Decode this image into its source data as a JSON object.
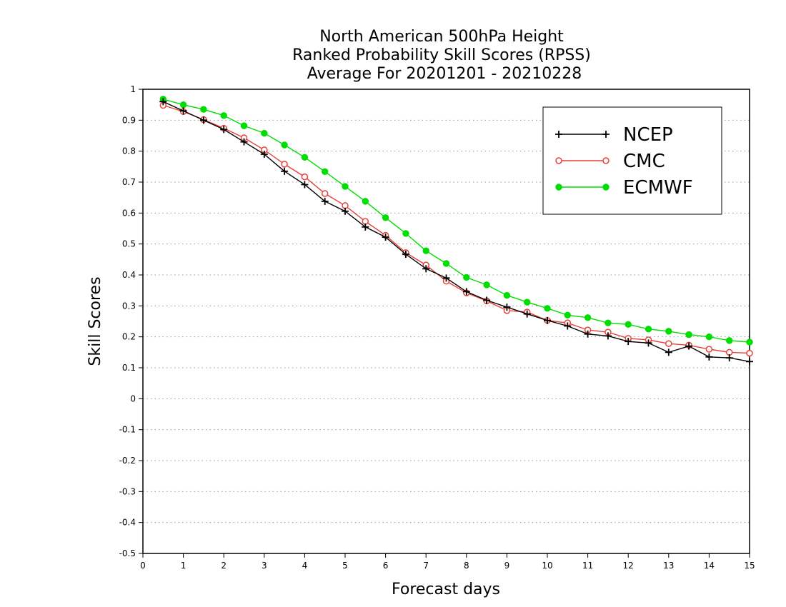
{
  "chart_data": {
    "type": "line",
    "title_lines": [
      "North American 500hPa Height",
      "Ranked Probability Skill Scores (RPSS)",
      "Average For 20201201 - 20210228"
    ],
    "xlabel": "Forecast days",
    "ylabel": "Skill Scores",
    "xlim": [
      0,
      15
    ],
    "ylim": [
      -0.5,
      1
    ],
    "x_ticks": [
      "0",
      "1",
      "2",
      "3",
      "4",
      "5",
      "6",
      "7",
      "8",
      "9",
      "10",
      "11",
      "12",
      "13",
      "14",
      "15"
    ],
    "y_ticks": [
      "1",
      "0.9",
      "0.8",
      "0.7",
      "0.6",
      "0.5",
      "0.4",
      "0.3",
      "0.2",
      "0.1",
      "0",
      "-0.1",
      "-0.2",
      "-0.3",
      "-0.4",
      "-0.5"
    ],
    "grid": "horizontal dotted",
    "legend_position": "top-right",
    "x": [
      0.5,
      1,
      1.5,
      2,
      2.5,
      3,
      3.5,
      4,
      4.5,
      5,
      5.5,
      6,
      6.5,
      7,
      7.5,
      8,
      8.5,
      9,
      9.5,
      10,
      10.5,
      11,
      11.5,
      12,
      12.5,
      13,
      13.5,
      14,
      14.5,
      15
    ],
    "series": [
      {
        "name": "NCEP",
        "color": "#000000",
        "marker": "plus",
        "values": [
          0.96,
          0.93,
          0.9,
          0.87,
          0.83,
          0.79,
          0.735,
          0.692,
          0.638,
          0.606,
          0.555,
          0.522,
          0.467,
          0.42,
          0.39,
          0.346,
          0.318,
          0.296,
          0.274,
          0.253,
          0.235,
          0.209,
          0.203,
          0.185,
          0.18,
          0.15,
          0.17,
          0.135,
          0.132,
          0.12
        ]
      },
      {
        "name": "CMC",
        "color": "#e8413a",
        "marker": "open-circle",
        "values": [
          0.948,
          0.928,
          0.902,
          0.874,
          0.843,
          0.804,
          0.758,
          0.717,
          0.663,
          0.624,
          0.573,
          0.528,
          0.472,
          0.432,
          0.38,
          0.342,
          0.316,
          0.285,
          0.28,
          0.253,
          0.245,
          0.222,
          0.215,
          0.195,
          0.19,
          0.178,
          0.173,
          0.16,
          0.15,
          0.147
        ]
      },
      {
        "name": "ECMWF",
        "color": "#00dd00",
        "marker": "filled-circle",
        "values": [
          0.968,
          0.95,
          0.935,
          0.915,
          0.882,
          0.858,
          0.82,
          0.78,
          0.734,
          0.686,
          0.638,
          0.585,
          0.534,
          0.478,
          0.437,
          0.392,
          0.368,
          0.334,
          0.312,
          0.292,
          0.27,
          0.262,
          0.245,
          0.24,
          0.225,
          0.218,
          0.207,
          0.2,
          0.188,
          0.183
        ]
      }
    ]
  }
}
